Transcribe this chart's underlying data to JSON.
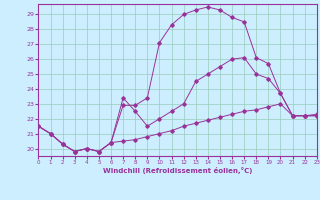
{
  "bg_color": "#cceeff",
  "line_color": "#993399",
  "grid_color": "#99ccbb",
  "xlim": [
    0,
    23
  ],
  "ylim": [
    19.5,
    29.7
  ],
  "yticks": [
    20,
    21,
    22,
    23,
    24,
    25,
    26,
    27,
    28,
    29
  ],
  "xticks": [
    0,
    1,
    2,
    3,
    4,
    5,
    6,
    7,
    8,
    9,
    10,
    11,
    12,
    13,
    14,
    15,
    16,
    17,
    18,
    19,
    20,
    21,
    22,
    23
  ],
  "xlabel": "Windchill (Refroidissement éolien,°C)",
  "curve_top_x": [
    0,
    1,
    2,
    3,
    4,
    5,
    6,
    7,
    8,
    9,
    10,
    11,
    12,
    13,
    14,
    15,
    16,
    17,
    18,
    19,
    20,
    21,
    22,
    23
  ],
  "curve_top_y": [
    21.5,
    21.0,
    20.3,
    19.8,
    20.0,
    19.8,
    20.4,
    22.9,
    22.9,
    23.4,
    27.1,
    28.3,
    29.0,
    29.3,
    29.5,
    29.3,
    28.8,
    28.5,
    26.1,
    25.7,
    23.7,
    22.2,
    22.2,
    22.2
  ],
  "curve_mid_x": [
    0,
    1,
    2,
    3,
    4,
    5,
    6,
    7,
    8,
    9,
    10,
    11,
    12,
    13,
    14,
    15,
    16,
    17,
    18,
    19,
    20,
    21,
    22,
    23
  ],
  "curve_mid_y": [
    21.5,
    21.0,
    20.3,
    19.8,
    20.0,
    19.8,
    20.4,
    23.4,
    22.5,
    21.5,
    22.0,
    22.5,
    23.0,
    24.5,
    25.0,
    25.5,
    26.0,
    26.1,
    25.0,
    24.7,
    23.7,
    22.2,
    22.2,
    22.2
  ],
  "curve_bot_x": [
    0,
    1,
    2,
    3,
    4,
    5,
    6,
    7,
    8,
    9,
    10,
    11,
    12,
    13,
    14,
    15,
    16,
    17,
    18,
    19,
    20,
    21,
    22,
    23
  ],
  "curve_bot_y": [
    21.5,
    21.0,
    20.3,
    19.8,
    20.0,
    19.8,
    20.4,
    20.5,
    20.6,
    20.8,
    21.0,
    21.2,
    21.5,
    21.7,
    21.9,
    22.1,
    22.3,
    22.5,
    22.6,
    22.8,
    23.0,
    22.2,
    22.2,
    22.3
  ]
}
